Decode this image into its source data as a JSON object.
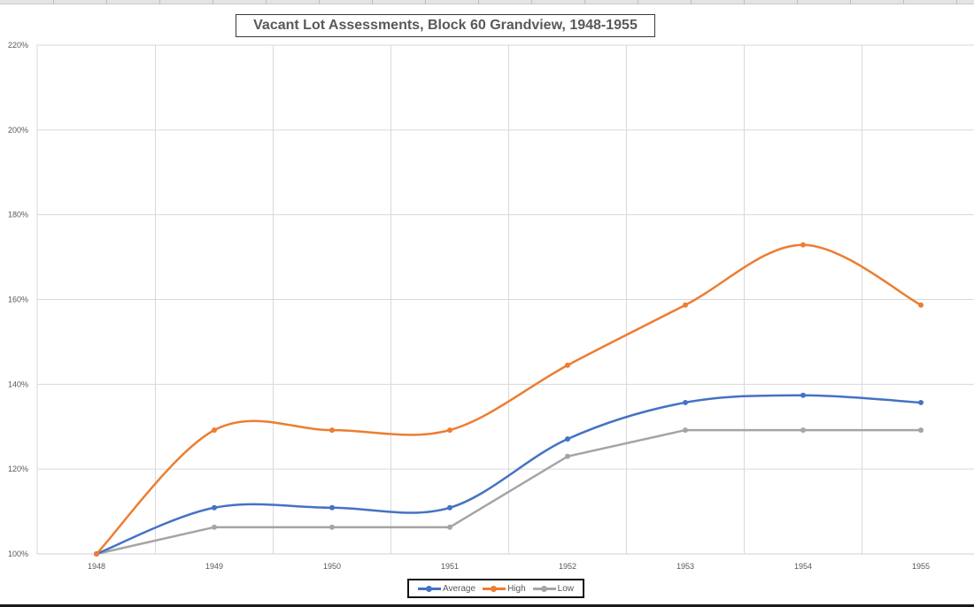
{
  "chart_data": {
    "type": "line",
    "title": "Vacant Lot Assessments, Block 60 Grandview, 1948-1955",
    "xlabel": "",
    "ylabel": "",
    "categories": [
      "1948",
      "1949",
      "1950",
      "1951",
      "1952",
      "1953",
      "1954",
      "1955"
    ],
    "ylim": [
      1.0,
      2.2
    ],
    "yticks": [
      "100%",
      "120%",
      "140%",
      "160%",
      "180%",
      "200%",
      "220%"
    ],
    "grid": true,
    "legend_position": "bottom",
    "series": [
      {
        "name": "Average",
        "color": "#4472c4",
        "smooth": true,
        "values": [
          1.0,
          1.109,
          1.109,
          1.109,
          1.271,
          1.357,
          1.374,
          1.357
        ]
      },
      {
        "name": "High",
        "color": "#ed7d31",
        "smooth": true,
        "values": [
          1.0,
          1.292,
          1.292,
          1.292,
          1.445,
          1.587,
          1.729,
          1.587
        ]
      },
      {
        "name": "Low",
        "color": "#a5a5a5",
        "smooth": false,
        "values": [
          1.0,
          1.063,
          1.063,
          1.063,
          1.23,
          1.292,
          1.292,
          1.292
        ]
      }
    ]
  },
  "legend": {
    "items": [
      {
        "label": "Average",
        "color": "#4472c4"
      },
      {
        "label": "High",
        "color": "#ed7d31"
      },
      {
        "label": "Low",
        "color": "#a5a5a5"
      }
    ]
  }
}
